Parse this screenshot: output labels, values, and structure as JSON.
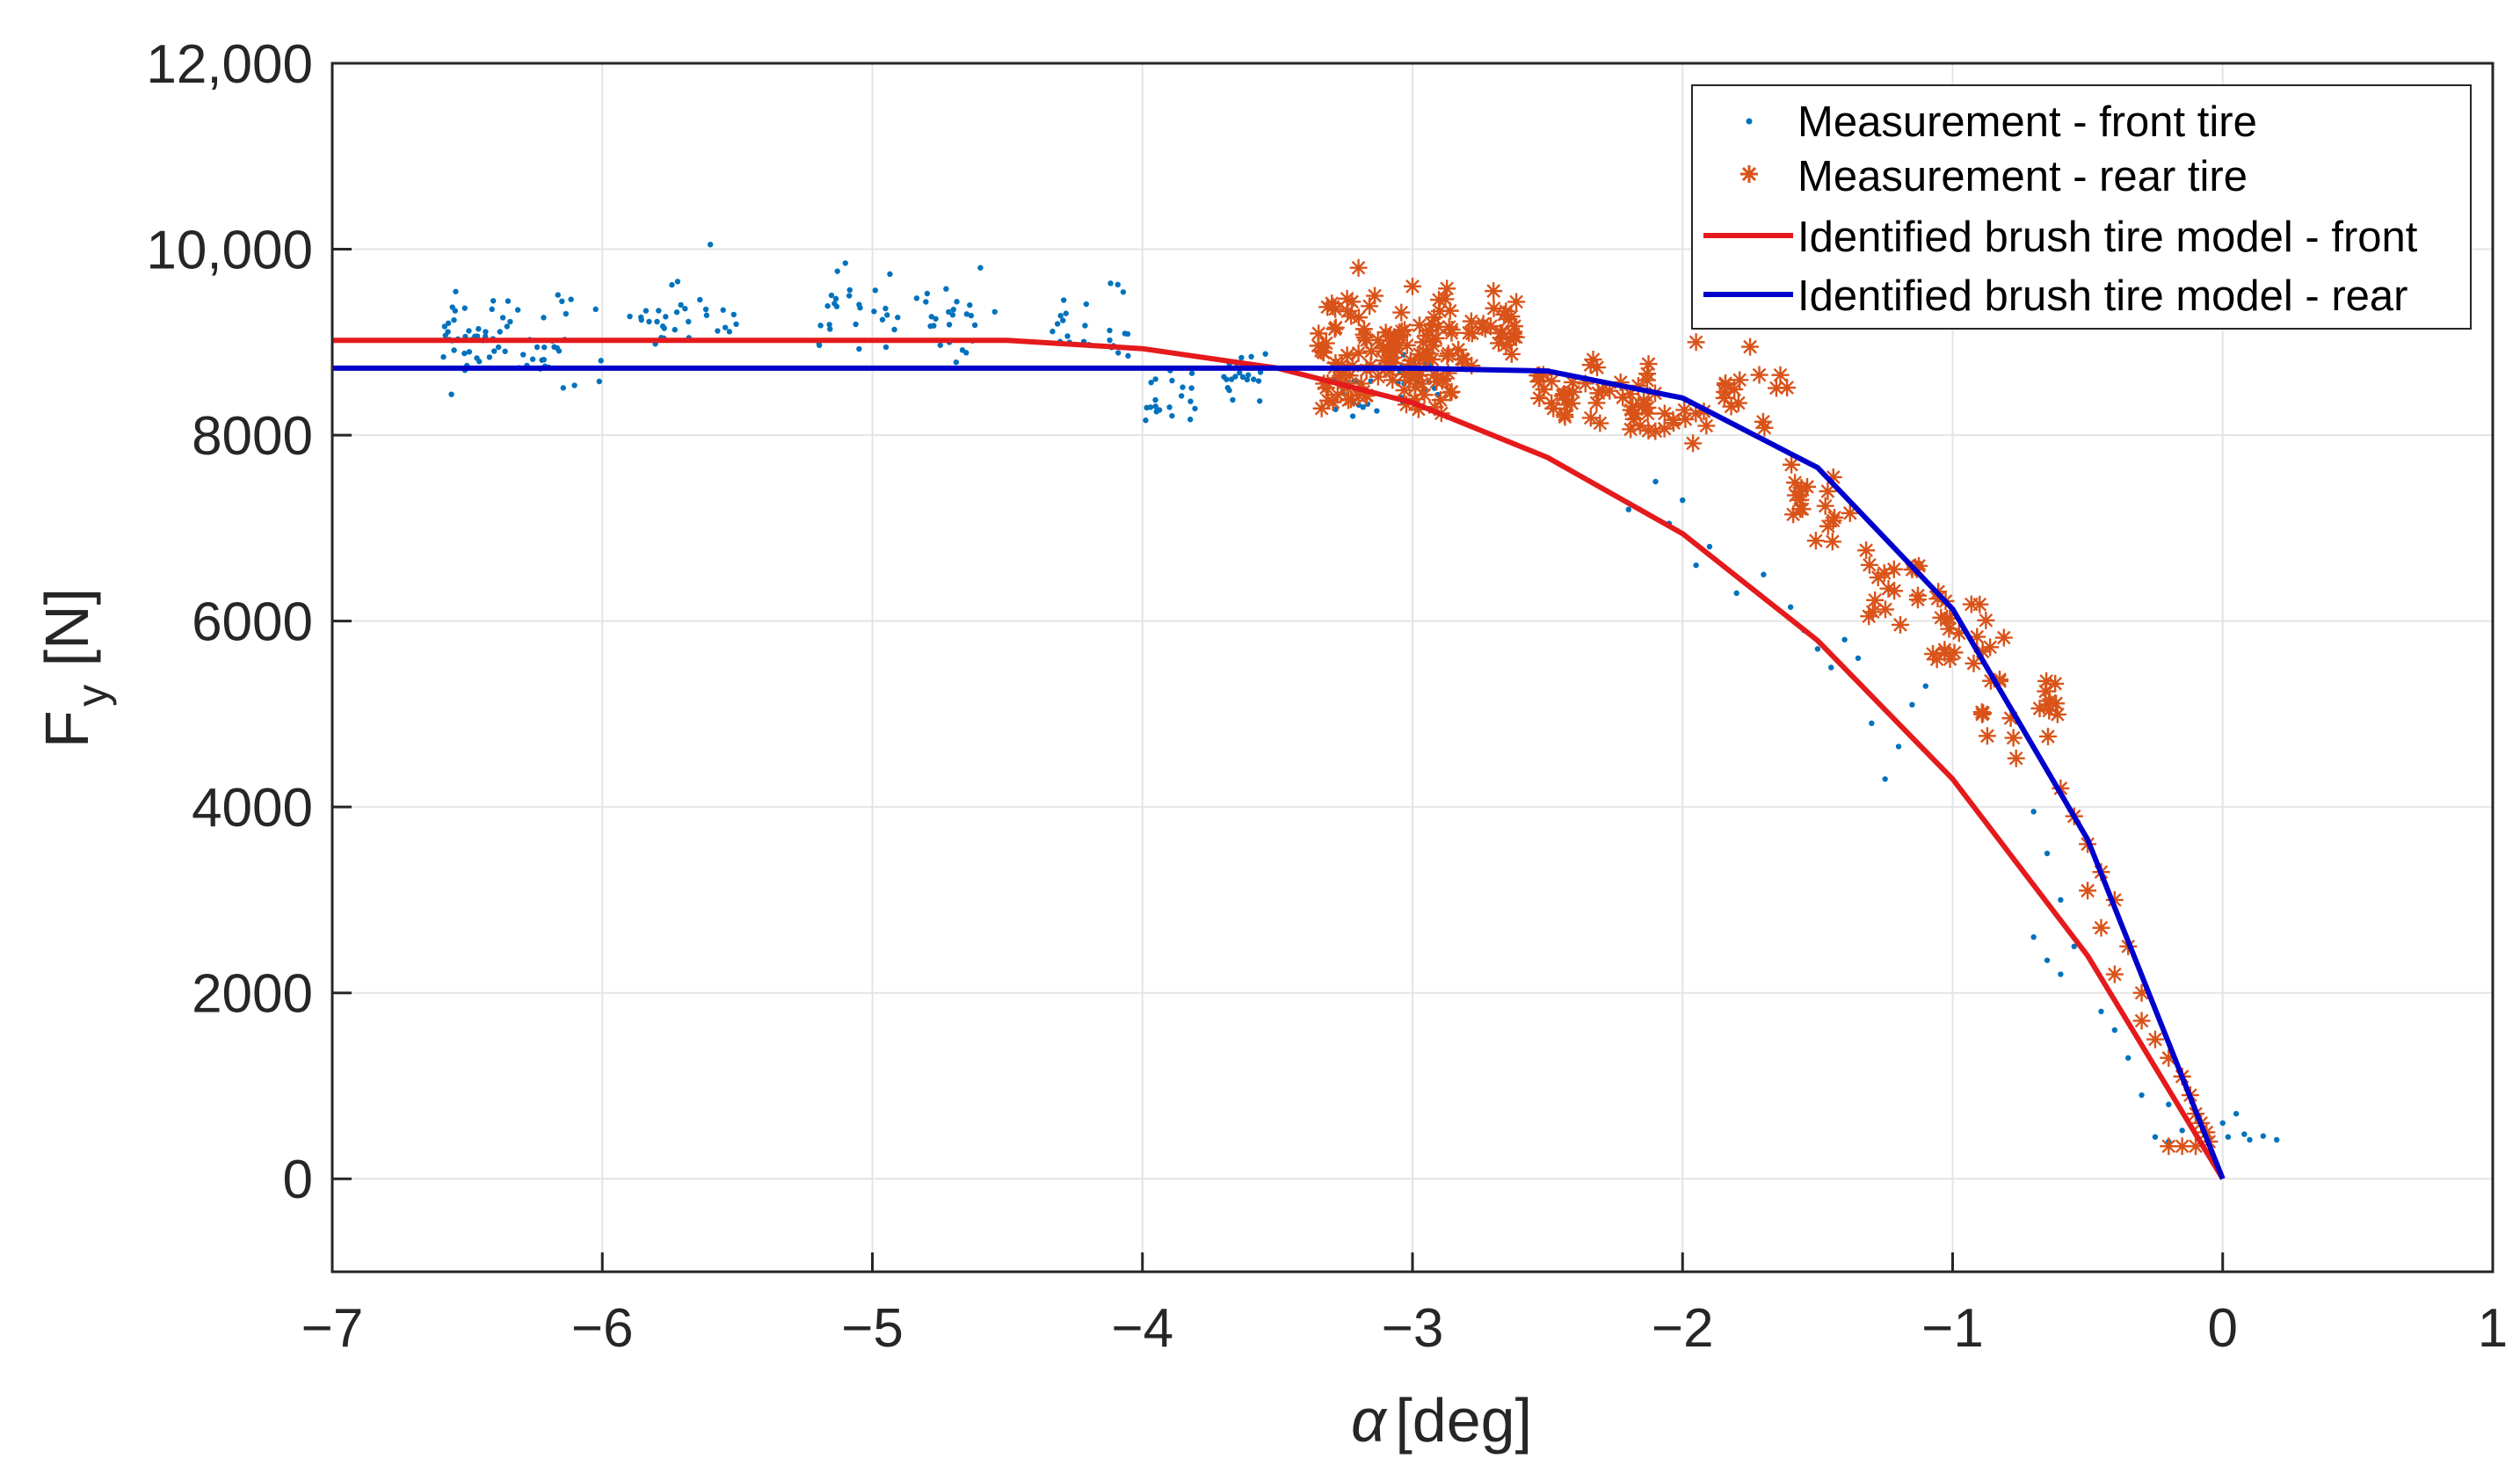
{
  "chart_data": {
    "type": "scatter",
    "title": "",
    "xlabel_symbol": "α",
    "xlabel_unit": "[deg]",
    "ylabel_main": "F",
    "ylabel_sub": "y",
    "ylabel_unit": "[N]",
    "xlim": [
      -7,
      1
    ],
    "ylim": [
      -1000,
      12000
    ],
    "grid": true,
    "xticks": [
      -7,
      -6,
      -5,
      -4,
      -3,
      -2,
      -1,
      0,
      1
    ],
    "xtick_labels": [
      "−7",
      "−6",
      "−5",
      "−4",
      "−3",
      "−2",
      "−1",
      "0",
      "1"
    ],
    "yticks": [
      0,
      2000,
      4000,
      6000,
      8000,
      10000,
      12000
    ],
    "ytick_labels": [
      "0",
      "2000",
      "4000",
      "6000",
      "8000",
      "10,000",
      "12,000"
    ],
    "legend_position": "top-right",
    "series": [
      {
        "name": "Measurement - front tire",
        "kind": "scatter",
        "marker": "dot",
        "color": "#0072BD",
        "clusters": [
          {
            "x": [
              -6.6,
              -6.0
            ],
            "y": [
              8400,
              9650
            ],
            "n": 70,
            "seed": 11
          },
          {
            "x": [
              -5.9,
              -5.5
            ],
            "y": [
              8800,
              9700
            ],
            "n": 30,
            "seed": 12
          },
          {
            "x": [
              -5.25,
              -4.9
            ],
            "y": [
              8800,
              9800
            ],
            "n": 26,
            "seed": 13
          },
          {
            "x": [
              -4.85,
              -4.5
            ],
            "y": [
              8750,
              9800
            ],
            "n": 24,
            "seed": 14
          },
          {
            "x": [
              -4.35,
              -4.05
            ],
            "y": [
              8700,
              9700
            ],
            "n": 24,
            "seed": 15
          },
          {
            "x": [
              -4.0,
              -3.8
            ],
            "y": [
              8000,
              8800
            ],
            "n": 20,
            "seed": 16
          },
          {
            "x": [
              -3.7,
              -3.5
            ],
            "y": [
              8200,
              9100
            ],
            "n": 20,
            "seed": 17
          },
          {
            "x": [
              -3.3,
              -2.9
            ],
            "y": [
              8150,
              8950
            ],
            "n": 35,
            "seed": 18
          }
        ],
        "points": [
          {
            "x": -5.6,
            "y": 10050
          },
          {
            "x": -5.1,
            "y": 9850
          },
          {
            "x": -4.6,
            "y": 9800
          },
          {
            "x": -2.2,
            "y": 7200
          },
          {
            "x": -2.1,
            "y": 7500
          },
          {
            "x": -2.0,
            "y": 7300
          },
          {
            "x": -2.05,
            "y": 7050
          },
          {
            "x": -1.9,
            "y": 6800
          },
          {
            "x": -1.95,
            "y": 6600
          },
          {
            "x": -1.8,
            "y": 6300
          },
          {
            "x": -1.7,
            "y": 6500
          },
          {
            "x": -1.6,
            "y": 6150
          },
          {
            "x": -1.55,
            "y": 5900
          },
          {
            "x": -1.5,
            "y": 5700
          },
          {
            "x": -1.45,
            "y": 5500
          },
          {
            "x": -1.4,
            "y": 5800
          },
          {
            "x": -1.35,
            "y": 5600
          },
          {
            "x": -1.3,
            "y": 4900
          },
          {
            "x": -1.25,
            "y": 4300
          },
          {
            "x": -1.2,
            "y": 4650
          },
          {
            "x": -1.15,
            "y": 5100
          },
          {
            "x": -1.1,
            "y": 5300
          },
          {
            "x": -0.7,
            "y": 3950
          },
          {
            "x": -0.65,
            "y": 3500
          },
          {
            "x": -0.6,
            "y": 3000
          },
          {
            "x": -0.7,
            "y": 2600
          },
          {
            "x": -0.65,
            "y": 2350
          },
          {
            "x": -0.6,
            "y": 2200
          },
          {
            "x": -0.55,
            "y": 2500
          },
          {
            "x": -0.45,
            "y": 1800
          },
          {
            "x": -0.4,
            "y": 1600
          },
          {
            "x": -0.35,
            "y": 1300
          },
          {
            "x": -0.3,
            "y": 900
          },
          {
            "x": -0.2,
            "y": 800
          },
          {
            "x": -0.25,
            "y": 450
          },
          {
            "x": -0.2,
            "y": 400
          },
          {
            "x": -0.15,
            "y": 520
          },
          {
            "x": -0.1,
            "y": 480
          },
          {
            "x": -0.05,
            "y": 420
          },
          {
            "x": 0.0,
            "y": 600
          },
          {
            "x": 0.02,
            "y": 450
          },
          {
            "x": 0.05,
            "y": 700
          },
          {
            "x": 0.08,
            "y": 480
          },
          {
            "x": 0.1,
            "y": 420
          },
          {
            "x": 0.15,
            "y": 460
          },
          {
            "x": 0.2,
            "y": 420
          }
        ]
      },
      {
        "name": "Measurement - rear tire",
        "kind": "scatter",
        "marker": "asterisk",
        "color": "#D95319",
        "clusters": [
          {
            "x": [
              -3.35,
              -2.85
            ],
            "y": [
              8100,
              9600
            ],
            "n": 120,
            "seed": 21
          },
          {
            "x": [
              -2.95,
              -2.6
            ],
            "y": [
              8700,
              9500
            ],
            "n": 40,
            "seed": 22
          },
          {
            "x": [
              -2.55,
              -2.1
            ],
            "y": [
              8000,
              8950
            ],
            "n": 40,
            "seed": 23
          },
          {
            "x": [
              -2.2,
              -1.9
            ],
            "y": [
              7800,
              8500
            ],
            "n": 20,
            "seed": 24
          },
          {
            "x": [
              -1.85,
              -1.6
            ],
            "y": [
              8000,
              8800
            ],
            "n": 14,
            "seed": 25
          },
          {
            "x": [
              -1.6,
              -1.35
            ],
            "y": [
              6500,
              8000
            ],
            "n": 20,
            "seed": 26
          },
          {
            "x": [
              -1.35,
              -1.05
            ],
            "y": [
              5900,
              7000
            ],
            "n": 20,
            "seed": 27
          },
          {
            "x": [
              -1.1,
              -0.8
            ],
            "y": [
              5400,
              6300
            ],
            "n": 20,
            "seed": 28
          },
          {
            "x": [
              -0.9,
              -0.6
            ],
            "y": [
              4500,
              5600
            ],
            "n": 20,
            "seed": 29
          }
        ],
        "points": [
          {
            "x": -3.2,
            "y": 9800
          },
          {
            "x": -3.0,
            "y": 9600
          },
          {
            "x": -2.7,
            "y": 9550
          },
          {
            "x": -1.95,
            "y": 9000
          },
          {
            "x": -1.75,
            "y": 8950
          },
          {
            "x": -0.6,
            "y": 4200
          },
          {
            "x": -0.55,
            "y": 3900
          },
          {
            "x": -0.5,
            "y": 3600
          },
          {
            "x": -0.45,
            "y": 3300
          },
          {
            "x": -0.5,
            "y": 3100
          },
          {
            "x": -0.4,
            "y": 3000
          },
          {
            "x": -0.45,
            "y": 2700
          },
          {
            "x": -0.35,
            "y": 2500
          },
          {
            "x": -0.4,
            "y": 2200
          },
          {
            "x": -0.3,
            "y": 2000
          },
          {
            "x": -0.3,
            "y": 1700
          },
          {
            "x": -0.25,
            "y": 1500
          },
          {
            "x": -0.2,
            "y": 1300
          },
          {
            "x": -0.15,
            "y": 1100
          },
          {
            "x": -0.12,
            "y": 900
          },
          {
            "x": -0.1,
            "y": 700
          },
          {
            "x": -0.08,
            "y": 600
          },
          {
            "x": -0.06,
            "y": 500
          },
          {
            "x": -0.05,
            "y": 400
          },
          {
            "x": -0.1,
            "y": 350
          },
          {
            "x": -0.15,
            "y": 350
          },
          {
            "x": -0.2,
            "y": 350
          }
        ]
      },
      {
        "name": "Identified brush tire model - front",
        "kind": "line",
        "color": "#E41A1C",
        "x": [
          -7,
          -6.5,
          -6,
          -5.5,
          -5,
          -4.5,
          -4,
          -3.5,
          -3,
          -2.5,
          -2,
          -1.5,
          -1,
          -0.5,
          0
        ],
        "y": [
          9020,
          9020,
          9020,
          9020,
          9020,
          9020,
          8930,
          8720,
          8350,
          7760,
          6940,
          5790,
          4300,
          2400,
          0
        ]
      },
      {
        "name": "Identified brush tire model - rear",
        "kind": "line",
        "color": "#0000CC",
        "x": [
          -7,
          -6.5,
          -6,
          -5.5,
          -5,
          -4.5,
          -4,
          -3.5,
          -3,
          -2.5,
          -2,
          -1.5,
          -1,
          -0.5,
          0
        ],
        "y": [
          8720,
          8720,
          8720,
          8720,
          8720,
          8720,
          8720,
          8720,
          8720,
          8690,
          8400,
          7650,
          6130,
          3650,
          0
        ]
      }
    ]
  }
}
